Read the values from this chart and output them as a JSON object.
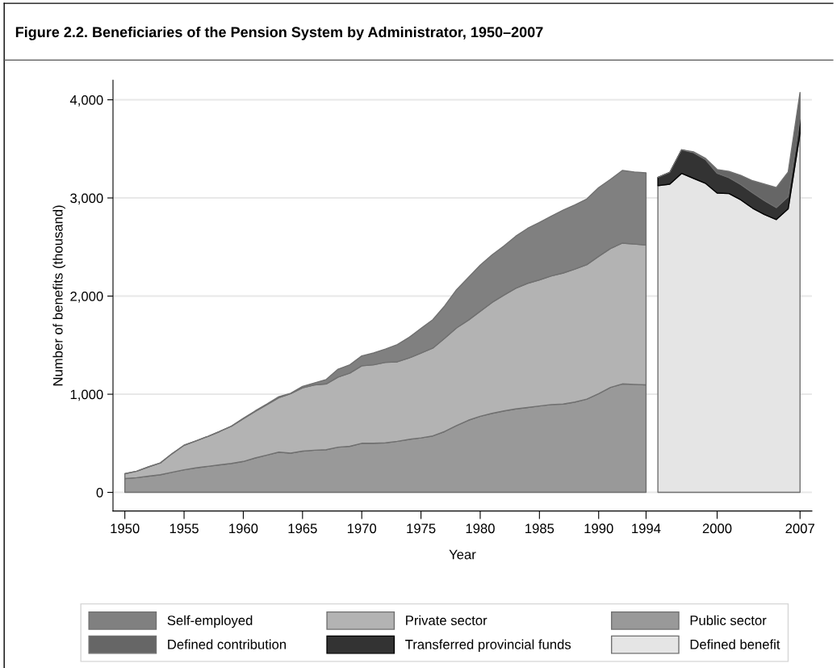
{
  "chart_data": {
    "type": "area",
    "stacked": true,
    "title": "Figure 2.2. Beneficiaries of the Pension System by Administrator, 1950–2007",
    "xlabel": "Year",
    "ylabel": "Number of benefits (thousand)",
    "xlim": [
      1949,
      2008
    ],
    "ylim": [
      -190,
      4200
    ],
    "xticks": [
      1950,
      1955,
      1960,
      1965,
      1970,
      1975,
      1980,
      1985,
      1990,
      1994,
      2000,
      2007
    ],
    "yticks": [
      {
        "value": 0,
        "label": "0"
      },
      {
        "value": 1000,
        "label": "1,000"
      },
      {
        "value": 2000,
        "label": "2,000"
      },
      {
        "value": 3000,
        "label": "3,000"
      },
      {
        "value": 4000,
        "label": "4,000"
      }
    ],
    "grid": "y",
    "legend": "bottom",
    "x": [
      1950,
      1951,
      1952,
      1953,
      1954,
      1955,
      1956,
      1957,
      1958,
      1959,
      1960,
      1961,
      1962,
      1963,
      1964,
      1965,
      1966,
      1967,
      1968,
      1969,
      1970,
      1971,
      1972,
      1973,
      1974,
      1975,
      1976,
      1977,
      1978,
      1979,
      1980,
      1981,
      1982,
      1983,
      1984,
      1985,
      1986,
      1987,
      1988,
      1989,
      1990,
      1991,
      1992,
      1993,
      1994,
      1995,
      1996,
      1997,
      1998,
      1999,
      2000,
      2001,
      2002,
      2003,
      2004,
      2005,
      2006,
      2007
    ],
    "series": [
      {
        "name": "Public sector",
        "color": "#999999",
        "values": [
          140,
          150,
          165,
          180,
          205,
          230,
          250,
          265,
          280,
          295,
          315,
          350,
          380,
          410,
          400,
          420,
          430,
          435,
          460,
          470,
          500,
          500,
          505,
          520,
          540,
          555,
          575,
          620,
          680,
          735,
          775,
          805,
          830,
          850,
          865,
          880,
          895,
          900,
          920,
          950,
          1005,
          1070,
          1105,
          1100,
          1095,
          null,
          null,
          null,
          null,
          null,
          null,
          null,
          null,
          null,
          null,
          null,
          null,
          null
        ]
      },
      {
        "name": "Private sector",
        "color": "#b3b3b3",
        "values": [
          50,
          65,
          95,
          120,
          190,
          250,
          275,
          305,
          340,
          380,
          435,
          475,
          515,
          555,
          605,
          645,
          665,
          670,
          715,
          745,
          790,
          800,
          820,
          810,
          830,
          865,
          895,
          950,
          995,
          1020,
          1070,
          1130,
          1180,
          1230,
          1265,
          1285,
          1310,
          1335,
          1355,
          1370,
          1400,
          1415,
          1435,
          1430,
          1425,
          null,
          null,
          null,
          null,
          null,
          null,
          null,
          null,
          null,
          null,
          null,
          null,
          null
        ]
      },
      {
        "name": "Self-employed",
        "color": "#808080",
        "values": [
          0,
          0,
          0,
          0,
          0,
          0,
          0,
          0,
          0,
          0,
          5,
          5,
          5,
          10,
          5,
          15,
          20,
          45,
          80,
          85,
          100,
          120,
          135,
          175,
          210,
          250,
          290,
          330,
          390,
          435,
          470,
          485,
          500,
          530,
          560,
          585,
          610,
          640,
          655,
          670,
          700,
          705,
          740,
          735,
          735,
          null,
          null,
          null,
          null,
          null,
          null,
          null,
          null,
          null,
          null,
          null,
          null,
          null
        ]
      },
      {
        "name": "Defined benefit",
        "color": "#e5e5e5",
        "values": [
          null,
          null,
          null,
          null,
          null,
          null,
          null,
          null,
          null,
          null,
          null,
          null,
          null,
          null,
          null,
          null,
          null,
          null,
          null,
          null,
          null,
          null,
          null,
          null,
          null,
          null,
          null,
          null,
          null,
          null,
          null,
          null,
          null,
          null,
          null,
          null,
          null,
          null,
          null,
          null,
          null,
          null,
          null,
          null,
          null,
          3125,
          3140,
          3250,
          3200,
          3150,
          3050,
          3045,
          2980,
          2895,
          2830,
          2780,
          2890,
          3660
        ]
      },
      {
        "name": "Transferred provincial funds",
        "color": "#333333",
        "values": [
          null,
          null,
          null,
          null,
          null,
          null,
          null,
          null,
          null,
          null,
          null,
          null,
          null,
          null,
          null,
          null,
          null,
          null,
          null,
          null,
          null,
          null,
          null,
          null,
          null,
          null,
          null,
          null,
          null,
          null,
          null,
          null,
          null,
          null,
          null,
          null,
          null,
          null,
          null,
          null,
          null,
          null,
          null,
          null,
          null,
          85,
          120,
          240,
          260,
          240,
          200,
          160,
          155,
          155,
          140,
          120,
          120,
          140
        ]
      },
      {
        "name": "Defined contribution",
        "color": "#666666",
        "values": [
          null,
          null,
          null,
          null,
          null,
          null,
          null,
          null,
          null,
          null,
          null,
          null,
          null,
          null,
          null,
          null,
          null,
          null,
          null,
          null,
          null,
          null,
          null,
          null,
          null,
          null,
          null,
          null,
          null,
          null,
          null,
          null,
          null,
          null,
          null,
          null,
          null,
          null,
          null,
          null,
          null,
          null,
          null,
          null,
          null,
          0,
          0,
          0,
          10,
          15,
          40,
          65,
          95,
          125,
          170,
          205,
          255,
          275
        ]
      }
    ]
  }
}
